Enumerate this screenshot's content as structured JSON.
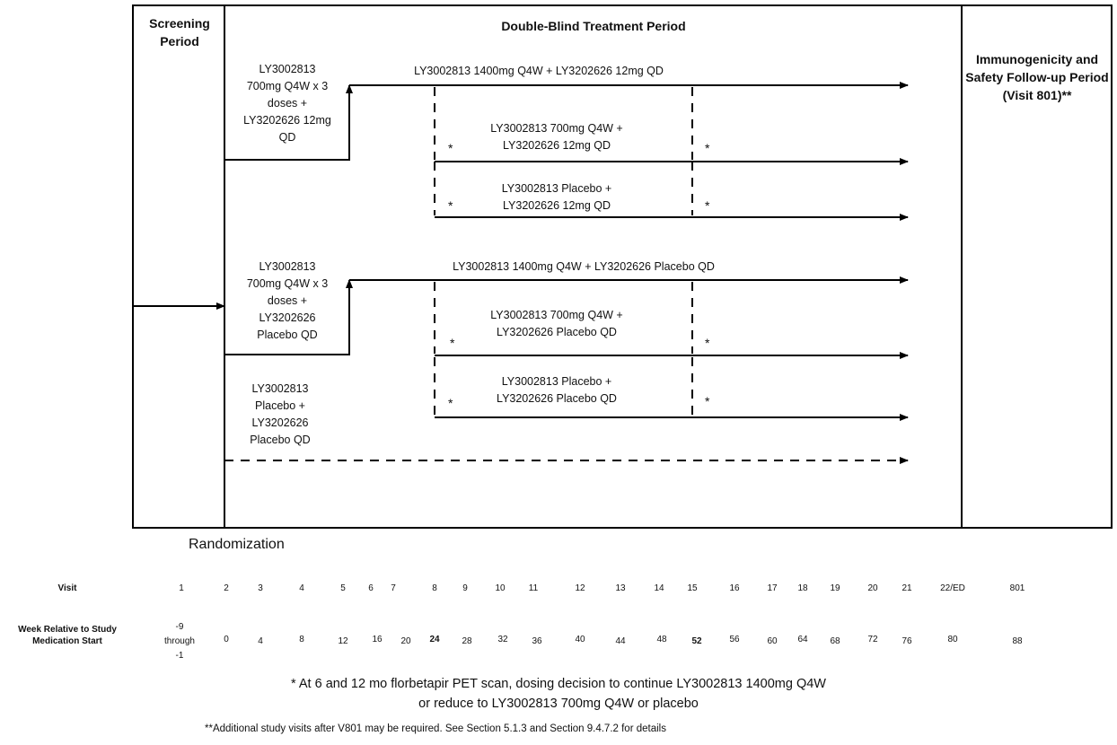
{
  "header": {
    "screening": "Screening Period",
    "treatment": "Double-Blind Treatment Period",
    "followup": "Immunogenicity and Safety Follow-up Period (Visit 801)**"
  },
  "arms": {
    "arm_a": "LY3002813 700mg Q4W x 3 doses + LY3202626 12mg QD",
    "arm_b": "LY3002813 700mg Q4W x 3 doses + LY3202626 Placebo QD",
    "arm_c": "LY3002813 Placebo + LY3202626 Placebo QD"
  },
  "paths": {
    "a1": "LY3002813 1400mg Q4W  + LY3202626 12mg QD",
    "a2_line1": "LY3002813 700mg Q4W +",
    "a2_line2": "LY3202626 12mg QD",
    "a3_line1": "LY3002813 Placebo +",
    "a3_line2": "LY3202626 12mg QD",
    "b1": "LY3002813 1400mg Q4W + LY3202626 Placebo QD",
    "b2_line1": "LY3002813 700mg Q4W +",
    "b2_line2": "LY3202626 Placebo QD",
    "b3_line1": "LY3002813 Placebo +",
    "b3_line2": "LY3202626 Placebo QD"
  },
  "star": "*",
  "randomization": "Randomization",
  "schedule": {
    "visit_label": "Visit",
    "week_label": "Week Relative to Study Medication Start",
    "visits": [
      "1",
      "2",
      "3",
      "4",
      "5",
      "6",
      "7",
      "8",
      "9",
      "10",
      "11",
      "12",
      "13",
      "14",
      "15",
      "16",
      "17",
      "18",
      "19",
      "20",
      "21",
      "22/ED",
      "801"
    ],
    "weeks_first": [
      "-9",
      "through",
      "-1"
    ],
    "weeks": [
      "0",
      "4",
      "8",
      "12",
      "16",
      "20",
      "24",
      "28",
      "32",
      "36",
      "40",
      "44",
      "48",
      "52",
      "56",
      "60",
      "64",
      "68",
      "72",
      "76",
      "80",
      "88"
    ]
  },
  "notes": {
    "star_line1": "* At 6 and 12 mo florbetapir PET scan, dosing decision to continue LY3002813 1400mg Q4W",
    "star_line2": "or reduce to LY3002813 700mg Q4W or placebo",
    "double_star": "**Additional study visits after V801 may be required. See Section 5.1.3 and Section 9.4.7.2 for details"
  }
}
